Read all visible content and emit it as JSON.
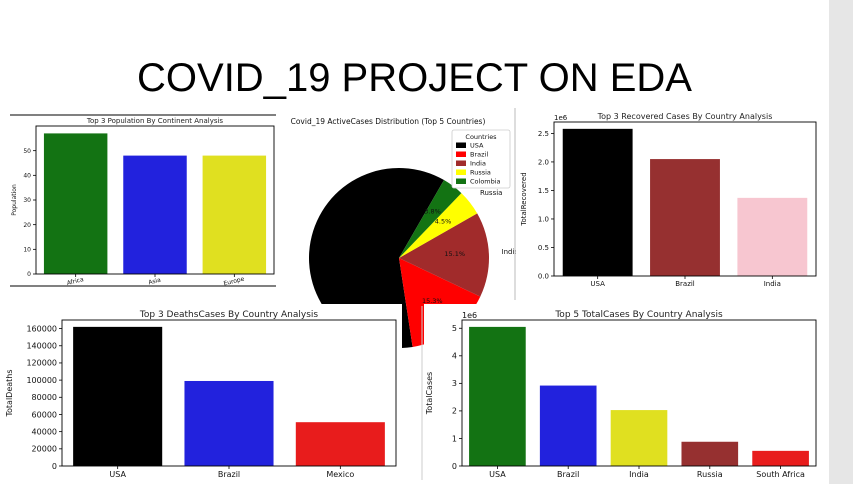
{
  "slide": {
    "title": "COVID_19 PROJECT ON EDA"
  },
  "colors": {
    "green": "#137313",
    "blue": "#2222dd",
    "yellow": "#e0e020",
    "black": "#000000",
    "red": "#e81c1c",
    "brown": "#a12b2b",
    "pink": "#f7c6d0"
  },
  "chart_data": [
    {
      "id": "population",
      "type": "bar",
      "title": "Top 3 Population By Continent Analysis",
      "xlabel": "",
      "ylabel": "Population",
      "categories": [
        "Africa",
        "Asia",
        "Europe"
      ],
      "values": [
        57,
        48,
        48
      ],
      "colors": [
        "#137313",
        "#2222dd",
        "#e0e020"
      ],
      "yticks": [
        0,
        10,
        20,
        30,
        40,
        50
      ],
      "ylim": [
        0,
        60
      ]
    },
    {
      "id": "active",
      "type": "pie",
      "title": "Covid_19 ActiveCases Distribution (Top 5 Countries)",
      "legend_title": "Countries",
      "legend_position": "top-right",
      "labels": [
        "USA",
        "Brazil",
        "India",
        "Russia",
        "Colombia"
      ],
      "values": [
        59.9,
        15.3,
        15.1,
        4.5,
        3.8
      ],
      "pct_labels": [
        "",
        "15.3%",
        "15.1%",
        "4.5%",
        "3.8%"
      ],
      "colors": [
        "#000000",
        "#ff0000",
        "#a12b2b",
        "#ffff00",
        "#137313"
      ]
    },
    {
      "id": "recovered",
      "type": "bar",
      "title": "Top 3 Recovered Cases By Country Analysis",
      "xlabel": "",
      "ylabel": "TotalRecovered",
      "axis_multiplier": "1e6",
      "categories": [
        "USA",
        "Brazil",
        "India"
      ],
      "values": [
        2.58,
        2.05,
        1.37
      ],
      "colors": [
        "#000000",
        "#963030",
        "#f7c6d0"
      ],
      "yticks": [
        "0.0",
        "0.5",
        "1.0",
        "1.5",
        "2.0",
        "2.5"
      ],
      "ylim": [
        0,
        2.7
      ]
    },
    {
      "id": "deaths",
      "type": "bar",
      "title": "Top 3 DeathsCases By Country Analysis",
      "xlabel": "",
      "ylabel": "TotalDeaths",
      "categories": [
        "USA",
        "Brazil",
        "Mexico"
      ],
      "values": [
        162000,
        99000,
        51000
      ],
      "colors": [
        "#000000",
        "#2222dd",
        "#e81c1c"
      ],
      "yticks": [
        "0",
        "20000",
        "40000",
        "60000",
        "80000",
        "100000",
        "120000",
        "140000",
        "160000"
      ],
      "ylim": [
        0,
        170000
      ]
    },
    {
      "id": "total",
      "type": "bar",
      "title": "Top 5 TotalCases By Country Analysis",
      "xlabel": "",
      "ylabel": "TotalCases",
      "axis_multiplier": "1e6",
      "categories": [
        "USA",
        "Brazil",
        "India",
        "Russia",
        "South Africa"
      ],
      "values": [
        5.05,
        2.92,
        2.03,
        0.88,
        0.55
      ],
      "colors": [
        "#137313",
        "#2222dd",
        "#e0e020",
        "#963030",
        "#e81c1c"
      ],
      "yticks": [
        "0",
        "1",
        "2",
        "3",
        "4",
        "5"
      ],
      "ylim": [
        0,
        5.3
      ]
    }
  ]
}
